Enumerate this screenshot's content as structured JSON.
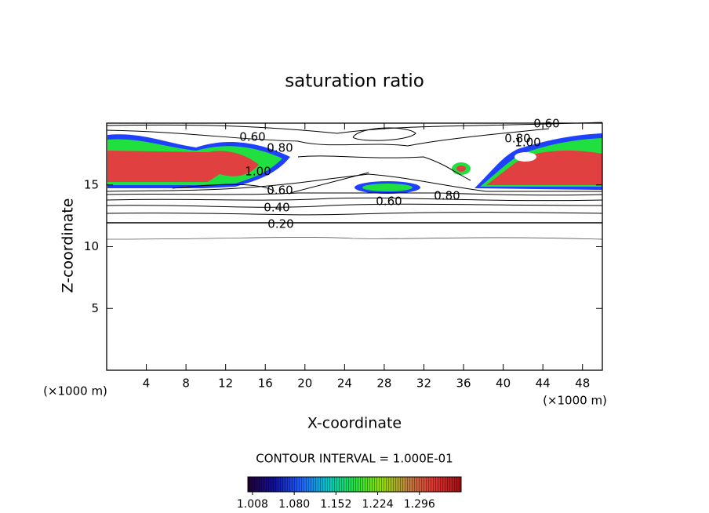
{
  "chart_data": {
    "type": "contour",
    "title": "saturation ratio",
    "x_label": "X-coordinate",
    "y_label": "Z-coordinate",
    "x_unit": "(×1000 m)",
    "y_unit": "(×1000 m)",
    "xlim": [
      0,
      50
    ],
    "xticks": [
      4,
      8,
      12,
      16,
      20,
      24,
      28,
      32,
      36,
      40,
      44,
      48
    ],
    "ylim": [
      0,
      20
    ],
    "yticks": [
      5,
      10,
      15
    ],
    "contour_note": "CONTOUR INTERVAL = 1.000E-01",
    "contour_labels": [
      {
        "value": 0.6,
        "label": "0.60"
      },
      {
        "value": 0.8,
        "label": "0.80"
      },
      {
        "value": 1.0,
        "label": "1.00"
      },
      {
        "value": 0.6,
        "label": "0.60"
      },
      {
        "value": 0.4,
        "label": "0.40"
      },
      {
        "value": 0.2,
        "label": "0.20"
      },
      {
        "value": 0.6,
        "label": "0.60"
      },
      {
        "value": 0.8,
        "label": "0.80"
      },
      {
        "value": 0.6,
        "label": "0.60"
      },
      {
        "value": 0.8,
        "label": "0.80"
      },
      {
        "value": 1.0,
        "label": "1.00"
      }
    ],
    "colorbar": {
      "lim": [
        1.0,
        1.368
      ],
      "ticks": [
        1.008,
        {
          "value": 1.08,
          "label": "1.080"
        },
        1.152,
        1.224,
        1.296
      ],
      "colors": [
        "#200030",
        "#1010a0",
        "#2060ff",
        "#00c8c8",
        "#20e040",
        "#90e000",
        "#c08040",
        "#e03030",
        "#a01010"
      ]
    }
  }
}
